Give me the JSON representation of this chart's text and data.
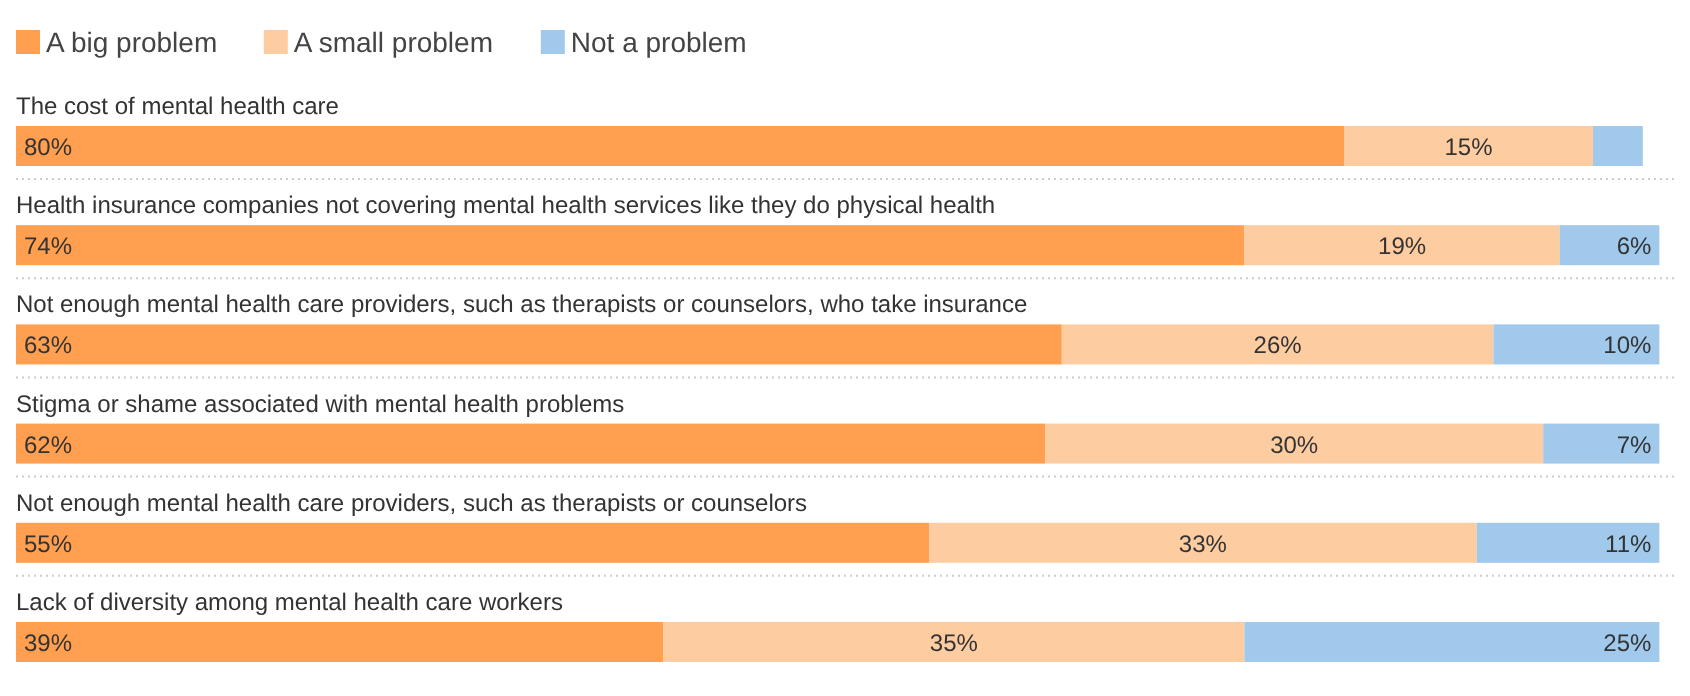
{
  "chart_data": {
    "type": "bar",
    "orientation": "horizontal",
    "stacked": true,
    "legend": "top left",
    "xlim": [
      0,
      100
    ],
    "categories": [
      "The cost of mental health care",
      "Health insurance companies not covering mental health services like they do physical health",
      "Not enough mental health care providers, such as therapists or counselors, who take insurance",
      "Stigma or shame associated with mental health problems",
      "Not enough mental health care providers, such as therapists or counselors",
      "Lack of diversity among mental health care workers"
    ],
    "series": [
      {
        "name": "A big problem",
        "color": "#ff9f4f",
        "values": [
          80,
          74,
          63,
          62,
          55,
          39
        ],
        "value_labels": [
          "80%",
          "74%",
          "63%",
          "62%",
          "55%",
          "39%"
        ]
      },
      {
        "name": "A small problem",
        "color": "#fdcca1",
        "values": [
          15,
          19,
          26,
          30,
          33,
          35
        ],
        "value_labels": [
          "15%",
          "19%",
          "26%",
          "30%",
          "33%",
          "35%"
        ]
      },
      {
        "name": "Not a problem",
        "color": "#a0c9ec",
        "values": [
          3,
          6,
          10,
          7,
          11,
          25
        ],
        "value_labels": [
          null,
          "6%",
          "10%",
          "7%",
          "11%",
          "25%"
        ]
      }
    ]
  }
}
